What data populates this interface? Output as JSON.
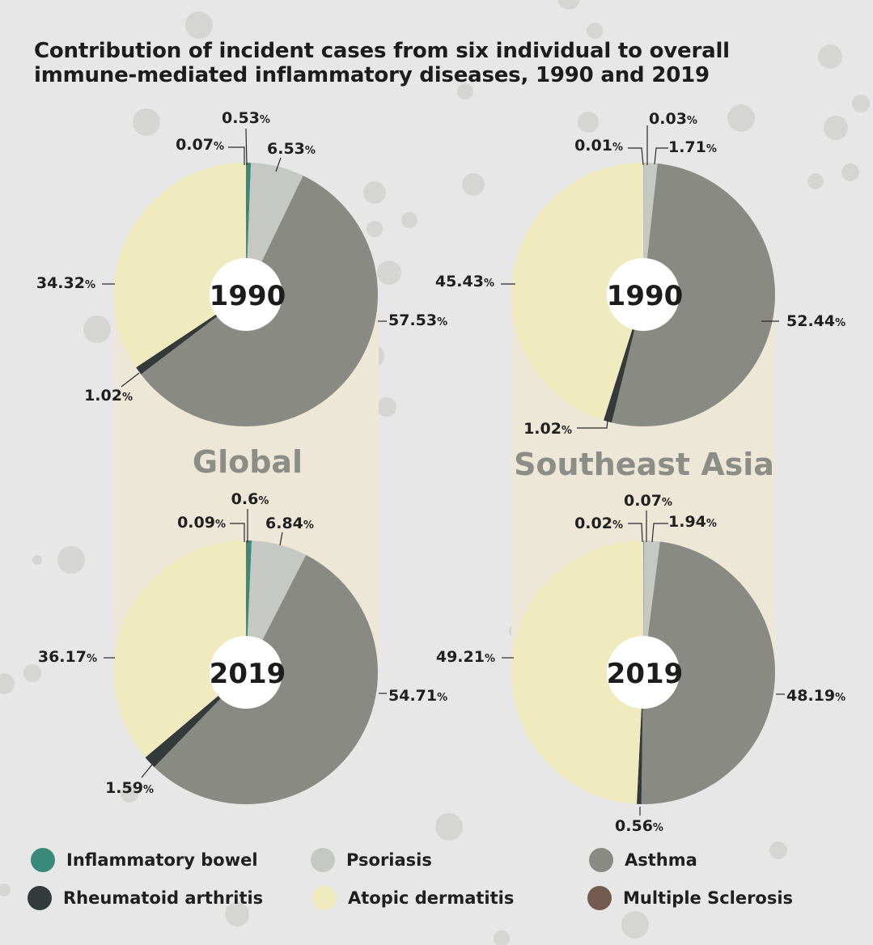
{
  "title_line1": "Contribution of incident cases from six individual to overall",
  "title_line2": "immune-mediated inflammatory diseases, 1990 and 2019",
  "colors": {
    "Inflammatory bowel": "#3a8a7a",
    "Rheumatoid arthritis": "#343a39",
    "Psoriasis": "#c5c8c3",
    "Atopic dermatitis": "#efebbf",
    "Asthma": "#8a8a85",
    "Multiple Sclerosis": "#735a4f"
  },
  "legend": [
    {
      "label": "Inflammatory bowel",
      "icon": "circle-swatch"
    },
    {
      "label": "Psoriasis",
      "icon": "circle-swatch"
    },
    {
      "label": "Asthma",
      "icon": "circle-swatch"
    },
    {
      "label": "Rheumatoid arthritis",
      "icon": "circle-swatch"
    },
    {
      "label": "Atopic dermatitis",
      "icon": "circle-swatch"
    },
    {
      "label": "Multiple Sclerosis",
      "icon": "circle-swatch"
    }
  ],
  "chart_data": [
    {
      "type": "pie",
      "region": "Global",
      "center_label": "1990",
      "slices": [
        {
          "name": "Multiple Sclerosis",
          "value": 0.07,
          "label": "0.07"
        },
        {
          "name": "Inflammatory bowel",
          "value": 0.53,
          "label": "0.53"
        },
        {
          "name": "Psoriasis",
          "value": 6.53,
          "label": "6.53"
        },
        {
          "name": "Asthma",
          "value": 57.53,
          "label": "57.53"
        },
        {
          "name": "Rheumatoid arthritis",
          "value": 1.02,
          "label": "1.02"
        },
        {
          "name": "Atopic dermatitis",
          "value": 34.32,
          "label": "34.32"
        }
      ]
    },
    {
      "type": "pie",
      "region": "Southeast Asia",
      "center_label": "1990",
      "slices": [
        {
          "name": "Multiple Sclerosis",
          "value": 0.01,
          "label": "0.01"
        },
        {
          "name": "Inflammatory bowel",
          "value": 0.03,
          "label": "0.03"
        },
        {
          "name": "Psoriasis",
          "value": 1.71,
          "label": "1.71"
        },
        {
          "name": "Asthma",
          "value": 52.44,
          "label": "52.44"
        },
        {
          "name": "Rheumatoid arthritis",
          "value": 1.02,
          "label": "1.02"
        },
        {
          "name": "Atopic dermatitis",
          "value": 45.43,
          "label": "45.43"
        }
      ]
    },
    {
      "type": "pie",
      "region": "Global",
      "center_label": "2019",
      "slices": [
        {
          "name": "Multiple Sclerosis",
          "value": 0.09,
          "label": "0.09"
        },
        {
          "name": "Inflammatory bowel",
          "value": 0.6,
          "label": "0.6"
        },
        {
          "name": "Psoriasis",
          "value": 6.84,
          "label": "6.84"
        },
        {
          "name": "Asthma",
          "value": 54.71,
          "label": "54.71"
        },
        {
          "name": "Rheumatoid arthritis",
          "value": 1.59,
          "label": "1.59"
        },
        {
          "name": "Atopic dermatitis",
          "value": 36.17,
          "label": "36.17"
        }
      ]
    },
    {
      "type": "pie",
      "region": "Southeast Asia",
      "center_label": "2019",
      "slices": [
        {
          "name": "Multiple Sclerosis",
          "value": 0.02,
          "label": "0.02"
        },
        {
          "name": "Inflammatory bowel",
          "value": 0.07,
          "label": "0.07"
        },
        {
          "name": "Psoriasis",
          "value": 1.94,
          "label": "1.94"
        },
        {
          "name": "Asthma",
          "value": 48.19,
          "label": "48.19"
        },
        {
          "name": "Rheumatoid arthritis",
          "value": 0.56,
          "label": "0.56"
        },
        {
          "name": "Atopic dermatitis",
          "value": 49.21,
          "label": "49.21"
        }
      ]
    }
  ],
  "region_labels": [
    "Global",
    "Southeast Asia"
  ],
  "unit": "%"
}
